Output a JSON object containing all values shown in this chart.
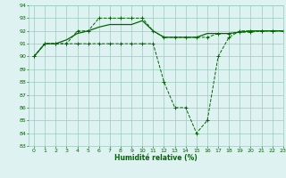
{
  "line_upper_x": [
    0,
    1,
    2,
    3,
    4,
    5,
    6,
    7,
    8,
    9,
    10,
    11,
    12,
    13,
    14,
    15,
    16,
    17,
    18,
    19,
    20,
    21,
    22,
    23
  ],
  "line_upper_y": [
    90,
    91,
    91,
    91,
    92,
    92,
    93,
    93,
    93,
    93,
    93,
    92,
    91.5,
    91.5,
    91.5,
    91.5,
    91.5,
    91.8,
    91.8,
    91.9,
    91.9,
    92,
    92,
    92
  ],
  "line_lower_x": [
    0,
    1,
    2,
    3,
    4,
    5,
    6,
    7,
    8,
    9,
    10,
    11,
    12,
    13,
    14,
    15,
    16,
    17,
    18,
    19,
    20,
    21,
    22,
    23
  ],
  "line_lower_y": [
    90,
    91,
    91,
    91,
    91,
    91,
    91,
    91,
    91,
    91,
    91,
    91,
    88,
    86,
    86,
    84,
    85,
    90,
    91.5,
    92,
    92,
    92,
    92,
    92
  ],
  "line_mid_x": [
    0,
    1,
    2,
    3,
    4,
    5,
    6,
    7,
    8,
    9,
    10,
    11,
    12,
    13,
    14,
    15,
    16,
    17,
    18,
    19,
    20,
    21,
    22,
    23
  ],
  "line_mid_y": [
    90,
    91,
    91,
    91.3,
    91.8,
    92,
    92.3,
    92.5,
    92.5,
    92.5,
    92.8,
    92,
    91.5,
    91.5,
    91.5,
    91.5,
    91.8,
    91.8,
    91.8,
    91.9,
    92,
    92,
    92,
    92
  ],
  "bg_color": "#dff2f2",
  "grid_color": "#99ccbb",
  "line_color": "#006600",
  "xlabel": "Humidité relative (%)",
  "ylim": [
    83,
    94
  ],
  "xlim": [
    -0.5,
    23
  ],
  "yticks": [
    83,
    84,
    85,
    86,
    87,
    88,
    89,
    90,
    91,
    92,
    93,
    94
  ],
  "xticks": [
    0,
    1,
    2,
    3,
    4,
    5,
    6,
    7,
    8,
    9,
    10,
    11,
    12,
    13,
    14,
    15,
    16,
    17,
    18,
    19,
    20,
    21,
    22,
    23
  ],
  "figsize": [
    3.2,
    2.0
  ],
  "dpi": 100
}
